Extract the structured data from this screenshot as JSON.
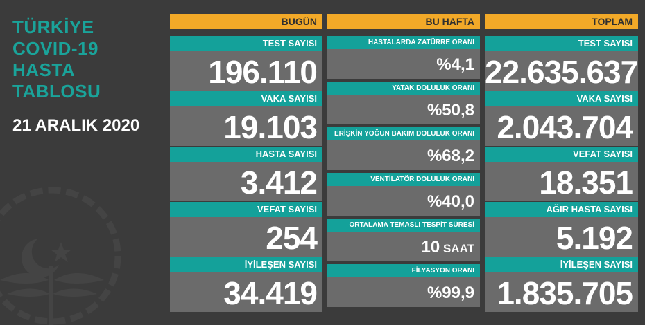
{
  "title_lines": [
    "TÜRKİYE",
    "COVID-19",
    "HASTA",
    "TABLOSU"
  ],
  "date": "21 ARALIK 2020",
  "colors": {
    "background": "#3b3b3b",
    "header": "#f2a928",
    "label": "#14a19a",
    "value_box": "#6b6b6b",
    "title": "#1aa39a"
  },
  "emblem_icon": "ministry-of-health-emblem-icon",
  "today": {
    "header": "BUGÜN",
    "items": [
      {
        "label": "TEST SAYISI",
        "value": "196.110"
      },
      {
        "label": "VAKA SAYISI",
        "value": "19.103"
      },
      {
        "label": "HASTA SAYISI",
        "value": "3.412"
      },
      {
        "label": "VEFAT SAYISI",
        "value": "254"
      },
      {
        "label": "İYİLEŞEN SAYISI",
        "value": "34.419"
      }
    ]
  },
  "week": {
    "header": "BU HAFTA",
    "items": [
      {
        "label": "HASTALARDA ZATÜRRE ORANI",
        "value": "%4,1",
        "unit": ""
      },
      {
        "label": "YATAK DOLULUK ORANI",
        "value": "%50,8",
        "unit": ""
      },
      {
        "label": "ERİŞKİN YOĞUN BAKIM DOLULUK ORANI",
        "value": "%68,2",
        "unit": ""
      },
      {
        "label": "VENTİLATÖR DOLULUK ORANI",
        "value": "%40,0",
        "unit": ""
      },
      {
        "label": "ORTALAMA TEMASLI TESPİT SÜRESİ",
        "value": "10",
        "unit": " SAAT"
      },
      {
        "label": "FİLYASYON ORANI",
        "value": "%99,9",
        "unit": ""
      }
    ]
  },
  "total": {
    "header": "TOPLAM",
    "items": [
      {
        "label": "TEST SAYISI",
        "value": "22.635.637"
      },
      {
        "label": "VAKA SAYISI",
        "value": "2.043.704"
      },
      {
        "label": "VEFAT SAYISI",
        "value": "18.351"
      },
      {
        "label": "AĞIR HASTA SAYISI",
        "value": "5.192"
      },
      {
        "label": "İYİLEŞEN SAYISI",
        "value": "1.835.705"
      }
    ]
  }
}
